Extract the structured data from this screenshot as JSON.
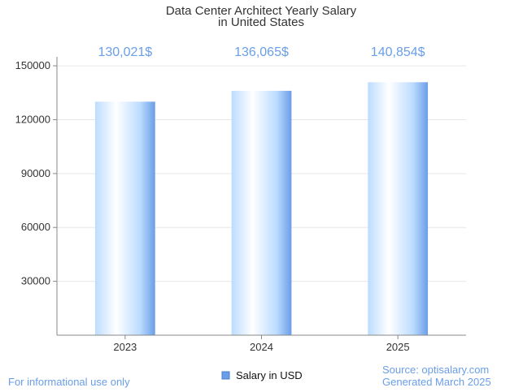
{
  "chart_data": {
    "type": "bar",
    "title": [
      "Data Center Architect Yearly Salary",
      "in United States"
    ],
    "categories": [
      "2023",
      "2024",
      "2025"
    ],
    "series": [
      {
        "name": "Salary in USD",
        "values": [
          130021,
          136065,
          140854
        ],
        "labels": [
          "130,021$",
          "136,065$",
          "140,854$"
        ],
        "color": "#6a9ee8"
      }
    ],
    "ylim": [
      0,
      155000
    ],
    "yticks": [
      30000,
      60000,
      90000,
      120000,
      150000
    ],
    "ytick_labels": [
      "30000",
      "60000",
      "90000",
      "120000",
      "150000"
    ],
    "grid": true,
    "legend": "bottom-center"
  },
  "footer": {
    "left": "For informational use only",
    "source": "Source: optisalary.com",
    "generated": "Generated March 2025"
  },
  "colors": {
    "bar_light": "#ffffff",
    "bar_mid": "#bcdcff",
    "bar_dark": "#6a9ee8",
    "grid": "#e6e6e6",
    "axis": "#888888"
  }
}
